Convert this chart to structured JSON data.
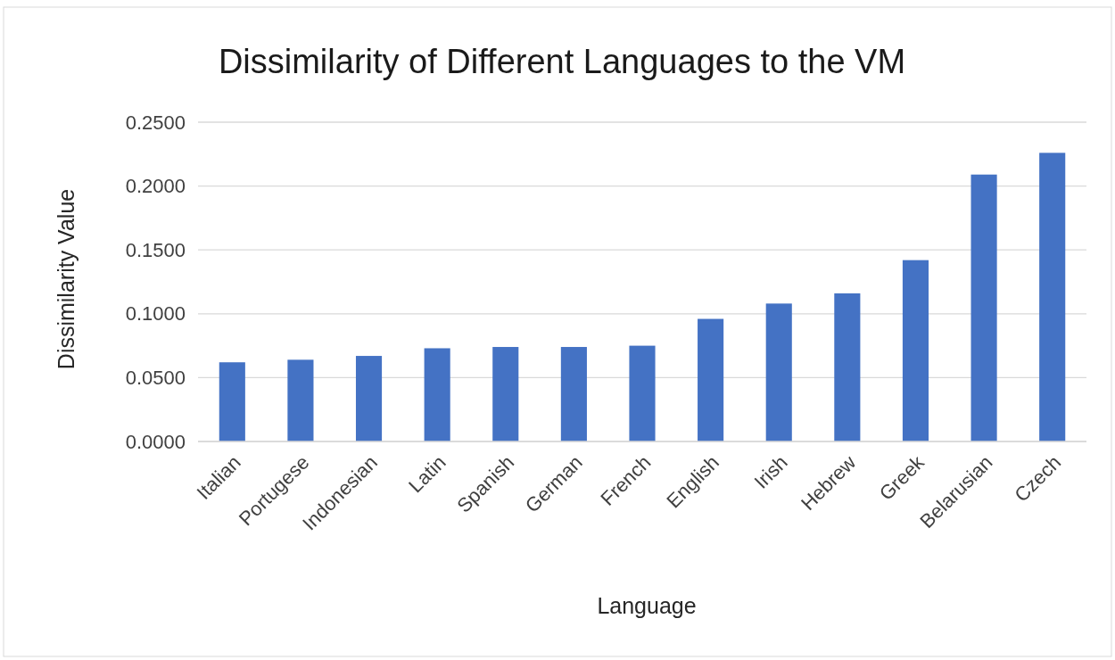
{
  "chart_data": {
    "type": "bar",
    "title": "Dissimilarity of Different Languages to the VM",
    "xlabel": "Language",
    "ylabel": "Dissimilarity Value",
    "categories": [
      "Italian",
      "Portugese",
      "Indonesian",
      "Latin",
      "Spanish",
      "German",
      "French",
      "English",
      "Irish",
      "Hebrew",
      "Greek",
      "Belarusian",
      "Czech"
    ],
    "values": [
      0.062,
      0.064,
      0.067,
      0.073,
      0.074,
      0.074,
      0.075,
      0.096,
      0.108,
      0.116,
      0.142,
      0.209,
      0.226
    ],
    "color": "#4472c4",
    "ylim": [
      0,
      0.25
    ],
    "yticks": [
      {
        "value": 0,
        "label": "0.0000"
      },
      {
        "value": 0.05,
        "label": "0.0500"
      },
      {
        "value": 0.1,
        "label": "0.1000"
      },
      {
        "value": 0.15,
        "label": "0.1500"
      },
      {
        "value": 0.2,
        "label": "0.2000"
      },
      {
        "value": 0.25,
        "label": "0.2500"
      }
    ],
    "grid": "y"
  }
}
